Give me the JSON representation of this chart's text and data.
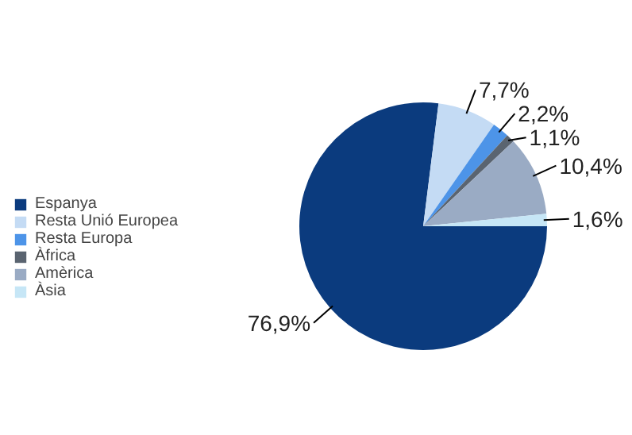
{
  "chart_data": {
    "type": "pie",
    "categories": [
      "Espanya",
      "Resta Unió Europea",
      "Resta Europa",
      "Àfrica",
      "Amèrica",
      "Àsia"
    ],
    "values": [
      76.9,
      7.7,
      2.2,
      1.1,
      10.4,
      1.6
    ],
    "colors": [
      "#0b3b7e",
      "#c4dbf4",
      "#4d94e8",
      "#5a6470",
      "#9aabc4",
      "#c6e6f6"
    ],
    "value_labels": [
      "76,9%",
      "7,7%",
      "2,2%",
      "1,1%",
      "10,4%",
      "1,6%"
    ],
    "legend": "left"
  }
}
